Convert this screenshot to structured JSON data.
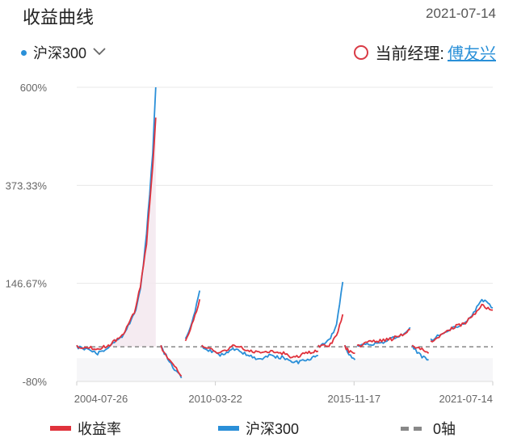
{
  "header": {
    "title": "收益曲线",
    "date": "2021-07-14"
  },
  "selector": {
    "label": "沪深300",
    "dot_color": "#2a90d8"
  },
  "manager": {
    "label": "当前经理:",
    "name": "傅友兴"
  },
  "legend": {
    "fund": "收益率",
    "index": "沪深300",
    "zero": "0轴"
  },
  "colors": {
    "fund": "#e0323c",
    "index": "#2a8fd8",
    "zero": "#888888"
  },
  "chart_data": {
    "type": "line",
    "y_ticks": [
      "600%",
      "373.33%",
      "146.67%",
      "-80%"
    ],
    "x_ticks": [
      "2004-07-26",
      "2010-03-22",
      "2015-11-17",
      "2021-07-14"
    ],
    "ylim": [
      -80,
      600
    ],
    "xlim": [
      "2004-07-26",
      "2021-07-14"
    ],
    "series": [
      {
        "name": "收益率",
        "segments": [
          [
            [
              "2004-07-26",
              0
            ],
            [
              "2005-01-01",
              0
            ],
            [
              "2005-06-01",
              -5
            ],
            [
              "2005-12-01",
              5
            ],
            [
              "2006-06-01",
              25
            ],
            [
              "2006-12-01",
              80
            ],
            [
              "2007-03-01",
              140
            ],
            [
              "2007-06-01",
              240
            ],
            [
              "2007-09-01",
              420
            ],
            [
              "2007-10-16",
              530
            ]
          ],
          [
            [
              "2008-01-01",
              0
            ],
            [
              "2008-06-01",
              -35
            ],
            [
              "2008-11-01",
              -68
            ]
          ],
          [
            [
              "2009-01-01",
              10
            ],
            [
              "2009-05-01",
              60
            ],
            [
              "2009-08-01",
              110
            ]
          ],
          [
            [
              "2009-09-01",
              0
            ],
            [
              "2010-06-01",
              -15
            ],
            [
              "2011-01-01",
              5
            ],
            [
              "2011-06-01",
              -5
            ],
            [
              "2012-01-01",
              -15
            ],
            [
              "2012-06-01",
              -10
            ],
            [
              "2013-01-01",
              -15
            ],
            [
              "2013-06-01",
              -25
            ],
            [
              "2013-12-01",
              -15
            ],
            [
              "2014-06-01",
              -10
            ]
          ],
          [
            [
              "2014-06-01",
              0
            ],
            [
              "2014-12-01",
              5
            ],
            [
              "2015-03-01",
              25
            ],
            [
              "2015-06-01",
              75
            ]
          ],
          [
            [
              "2015-07-01",
              0
            ],
            [
              "2015-09-01",
              -10
            ],
            [
              "2015-12-01",
              -15
            ]
          ],
          [
            [
              "2016-01-01",
              0
            ],
            [
              "2016-06-01",
              10
            ],
            [
              "2017-01-01",
              15
            ],
            [
              "2017-06-01",
              18
            ],
            [
              "2017-12-01",
              30
            ],
            [
              "2018-03-01",
              40
            ]
          ],
          [
            [
              "2018-04-01",
              0
            ],
            [
              "2018-08-01",
              -3
            ],
            [
              "2018-12-01",
              -15
            ]
          ],
          [
            [
              "2019-01-01",
              10
            ],
            [
              "2019-06-01",
              25
            ],
            [
              "2019-12-01",
              45
            ],
            [
              "2020-06-01",
              55
            ],
            [
              "2020-10-01",
              75
            ],
            [
              "2021-02-01",
              95
            ],
            [
              "2021-07-14",
              85
            ]
          ]
        ]
      },
      {
        "name": "沪深300",
        "segments": [
          [
            [
              "2004-07-26",
              0
            ],
            [
              "2005-01-01",
              -5
            ],
            [
              "2005-06-01",
              -15
            ],
            [
              "2005-12-01",
              0
            ],
            [
              "2006-06-01",
              25
            ],
            [
              "2006-12-01",
              75
            ],
            [
              "2007-03-01",
              130
            ],
            [
              "2007-06-01",
              260
            ],
            [
              "2007-09-01",
              450
            ],
            [
              "2007-10-16",
              600
            ]
          ],
          [
            [
              "2008-01-01",
              0
            ],
            [
              "2008-06-01",
              -40
            ],
            [
              "2008-11-01",
              -72
            ]
          ],
          [
            [
              "2009-01-01",
              15
            ],
            [
              "2009-05-01",
              70
            ],
            [
              "2009-08-01",
              130
            ]
          ],
          [
            [
              "2009-09-01",
              0
            ],
            [
              "2010-06-01",
              -20
            ],
            [
              "2011-01-01",
              -5
            ],
            [
              "2011-06-01",
              -15
            ],
            [
              "2012-01-01",
              -30
            ],
            [
              "2012-06-01",
              -20
            ],
            [
              "2013-01-01",
              -25
            ],
            [
              "2013-06-01",
              -38
            ],
            [
              "2013-12-01",
              -30
            ],
            [
              "2014-06-01",
              -20
            ]
          ],
          [
            [
              "2014-06-01",
              0
            ],
            [
              "2014-12-01",
              20
            ],
            [
              "2015-03-01",
              50
            ],
            [
              "2015-06-01",
              150
            ]
          ],
          [
            [
              "2015-07-01",
              0
            ],
            [
              "2015-09-01",
              -20
            ],
            [
              "2015-12-01",
              -30
            ]
          ],
          [
            [
              "2016-01-01",
              0
            ],
            [
              "2016-06-01",
              5
            ],
            [
              "2017-01-01",
              10
            ],
            [
              "2017-06-01",
              20
            ],
            [
              "2017-12-01",
              30
            ],
            [
              "2018-03-01",
              45
            ]
          ],
          [
            [
              "2018-04-01",
              0
            ],
            [
              "2018-08-01",
              -20
            ],
            [
              "2018-12-01",
              -30
            ]
          ],
          [
            [
              "2019-01-01",
              15
            ],
            [
              "2019-06-01",
              30
            ],
            [
              "2019-12-01",
              45
            ],
            [
              "2020-06-01",
              55
            ],
            [
              "2020-10-01",
              80
            ],
            [
              "2021-02-01",
              110
            ],
            [
              "2021-07-14",
              90
            ]
          ]
        ]
      }
    ],
    "zero_line": 0
  }
}
